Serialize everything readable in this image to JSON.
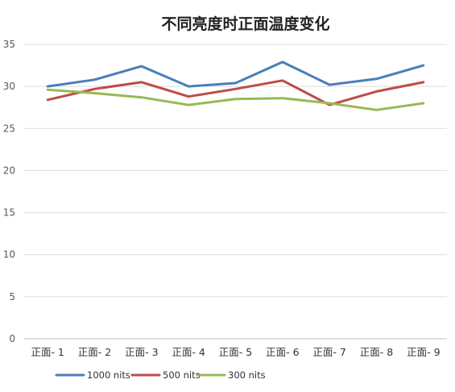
{
  "chart_data": {
    "type": "line",
    "title": "不同亮度时正面温度变化",
    "categories": [
      "正面- 1",
      "正面- 2",
      "正面- 3",
      "正面- 4",
      "正面- 5",
      "正面- 6",
      "正面- 7",
      "正面- 8",
      "正面- 9"
    ],
    "series": [
      {
        "name": "1000 nits",
        "color": "#4a7ebb",
        "values": [
          30.0,
          30.8,
          32.4,
          30.0,
          30.4,
          32.9,
          30.2,
          30.9,
          32.5
        ]
      },
      {
        "name": "500 nits",
        "color": "#be4b48",
        "values": [
          28.4,
          29.7,
          30.5,
          28.8,
          29.7,
          30.7,
          27.8,
          29.4,
          30.5
        ]
      },
      {
        "name": "300 nits",
        "color": "#98b954",
        "values": [
          29.6,
          29.2,
          28.7,
          27.8,
          28.5,
          28.6,
          28.0,
          27.2,
          28.0
        ]
      }
    ],
    "yticks": [
      "0",
      "5",
      "10",
      "15",
      "20",
      "25",
      "30",
      "35"
    ],
    "ylim": [
      0,
      35
    ],
    "grid": true,
    "legend": "bottom",
    "xlabel": "",
    "ylabel": ""
  }
}
